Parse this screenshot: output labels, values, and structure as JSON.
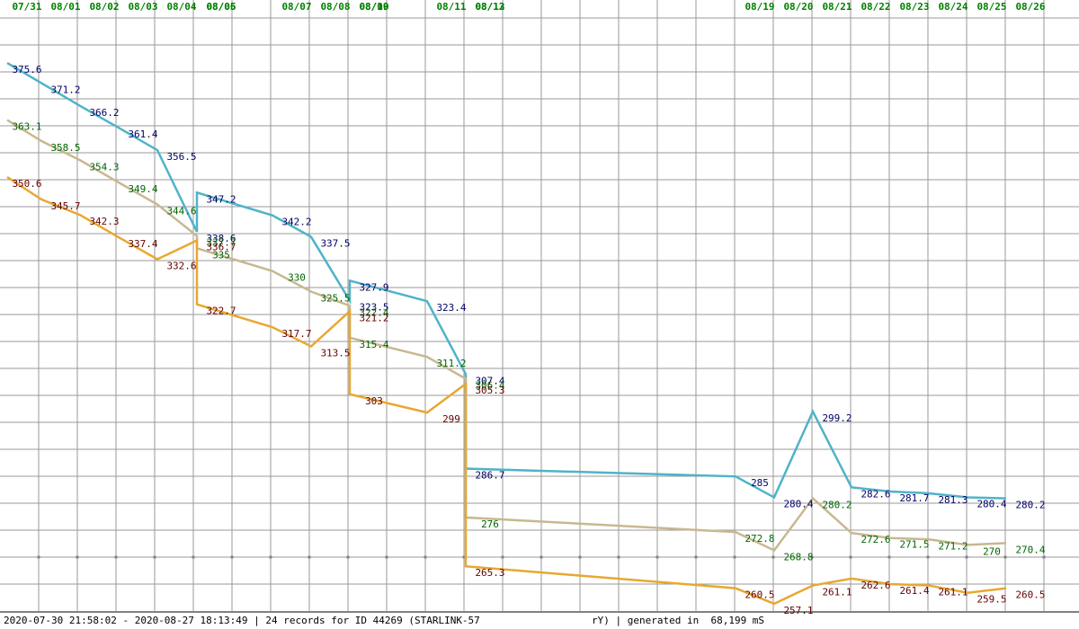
{
  "chart_data": {
    "type": "line",
    "categories": [
      "07/31",
      "08/01",
      "08/02",
      "08/03",
      "08/04",
      "08/05",
      "08/06",
      "08/07",
      "08/08",
      "08/09",
      "08/10",
      "08/11",
      "08/12",
      "08/13",
      "08/19",
      "08/20",
      "08/21",
      "08/22",
      "08/23",
      "08/24",
      "08/25",
      "08/26"
    ],
    "series": [
      {
        "color": "#4fb3c8",
        "label_color": "#000066",
        "values": [
          375.6,
          371.2,
          366.2,
          361.4,
          356.5,
          338.6,
          347.2,
          342.2,
          337.5,
          323.5,
          327.9,
          323.4,
          307.4,
          286.7,
          285.0,
          280.4,
          299.2,
          282.6,
          281.7,
          281.3,
          280.4,
          280.2
        ]
      },
      {
        "color": "#c8b890",
        "label_color": "#006600",
        "values": [
          363.1,
          358.5,
          354.3,
          349.4,
          344.6,
          337.7,
          335.0,
          330.0,
          325.5,
          322.4,
          315.4,
          311.2,
          306.4,
          276.0,
          272.8,
          268.8,
          280.2,
          272.6,
          271.5,
          271.2,
          270.0,
          270.4
        ]
      },
      {
        "color": "#e8a830",
        "label_color": "#660000",
        "values": [
          350.6,
          345.7,
          342.3,
          337.4,
          332.6,
          336.7,
          322.7,
          317.7,
          313.5,
          321.2,
          303.0,
          299.0,
          305.3,
          265.3,
          260.5,
          257.1,
          261.1,
          262.6,
          261.4,
          261.1,
          259.5,
          260.5
        ]
      }
    ],
    "ylim": [
      255.5,
      389.4
    ],
    "grid": true,
    "footer_left": "2020-07-30 21:58:02 - 2020-08-27 18:13:49 | 24 records for ID 44269 (STARLINK-57",
    "footer_right": "rY) | generated in  68,199 mS"
  }
}
